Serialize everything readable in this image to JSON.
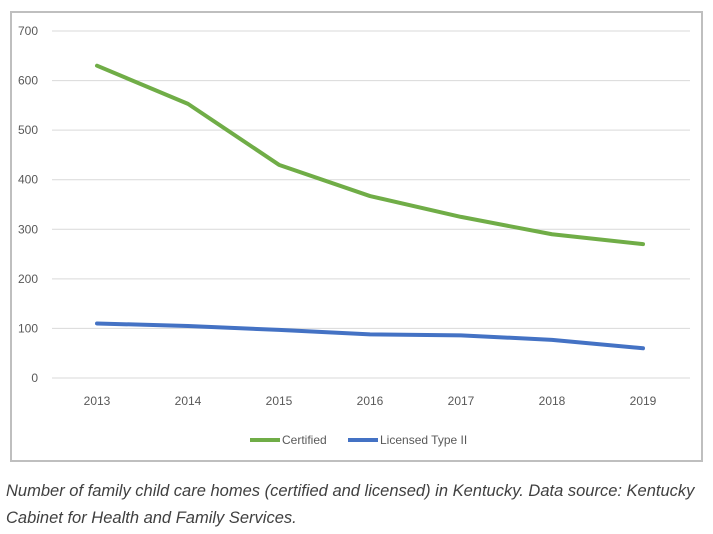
{
  "chart_data": {
    "type": "line",
    "title": "",
    "xlabel": "",
    "ylabel": "",
    "categories": [
      "2013",
      "2014",
      "2015",
      "2016",
      "2017",
      "2018",
      "2019"
    ],
    "ylim": [
      0,
      700
    ],
    "yticks": [
      0,
      100,
      200,
      300,
      400,
      500,
      600,
      700
    ],
    "grid": true,
    "legend_position": "bottom",
    "series": [
      {
        "name": "Certified",
        "color": "#70ad47",
        "values": [
          630,
          553,
          430,
          367,
          325,
          290,
          270
        ]
      },
      {
        "name": "Licensed Type II",
        "color": "#4472c4",
        "values": [
          110,
          105,
          97,
          88,
          86,
          77,
          60
        ]
      }
    ]
  },
  "caption": "Number of family child care homes (certified and licensed) in Kentucky. Data source:  Kentucky Cabinet for Health and Family Services."
}
